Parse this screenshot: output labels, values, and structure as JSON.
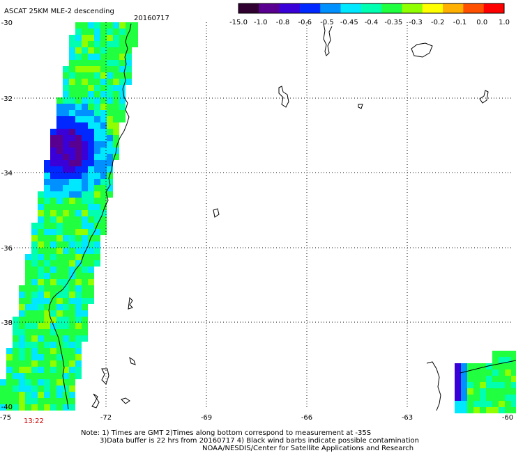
{
  "header": {
    "title": "ASCAT 25KM MLE-2 descending",
    "date": "20160717"
  },
  "colorbar": {
    "labels": [
      "-15.0",
      "-1.0",
      "-0.8",
      "-0.6",
      "-0.5",
      "-0.45",
      "-0.4",
      "-0.35",
      "-0.3",
      "-0.2",
      "-0.1",
      "0.0",
      "1.0"
    ],
    "colors": [
      "#300030",
      "#5a0090",
      "#3a00d8",
      "#0028ff",
      "#0090ff",
      "#00e8ff",
      "#00ffb0",
      "#20ff40",
      "#90ff00",
      "#ffff00",
      "#ffb000",
      "#ff5000",
      "#ff0000"
    ]
  },
  "axes": {
    "lon_labels": [
      "-75",
      "-72",
      "-69",
      "-66",
      "-63",
      "-60"
    ],
    "lat_labels": [
      "-30",
      "-32",
      "-34",
      "-36",
      "-38",
      "-40"
    ]
  },
  "time_label": "13:22",
  "notes": {
    "line1": "Note: 1) Times are GMT 2)Times along bottom correspond to measurement at -35S",
    "line2": "3)Data buffer is 22 hrs from 20160717 4) Black wind barbs indicate possible contamination",
    "line3": "NOAA/NESDIS/Center for Satellite Applications and Research"
  },
  "colors": {
    "time_label": "#cc0000",
    "grid": "#000000",
    "coast": "#000000"
  }
}
